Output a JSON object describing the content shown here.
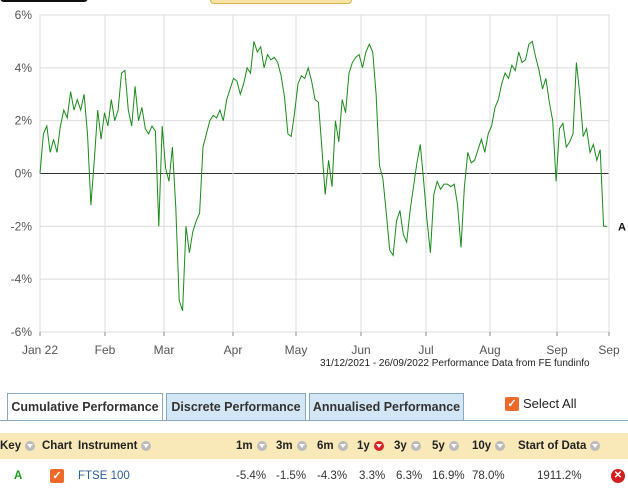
{
  "chart_data": {
    "type": "line",
    "x_labels": [
      "Jan 22",
      "Feb",
      "Mar",
      "Apr",
      "May",
      "Jun",
      "Jul",
      "Aug",
      "Sep",
      "Sep"
    ],
    "y_ticks": [
      "6%",
      "4%",
      "2%",
      "0%",
      "-2%",
      "-4%",
      "-6%"
    ],
    "ylim": [
      -6,
      6
    ],
    "series": [
      {
        "name": "A",
        "color": "#1b8a1b",
        "values": [
          0.0,
          1.5,
          1.8,
          0.8,
          1.3,
          0.8,
          1.8,
          2.4,
          2.1,
          3.1,
          2.4,
          2.8,
          2.4,
          3.0,
          1.5,
          -1.2,
          0.5,
          2.4,
          1.3,
          2.3,
          1.8,
          2.8,
          2.0,
          2.4,
          3.8,
          3.9,
          2.4,
          1.8,
          3.3,
          2.0,
          2.5,
          1.7,
          1.5,
          1.8,
          1.6,
          -2.0,
          1.8,
          0.2,
          -0.3,
          1.0,
          -1.3,
          -4.8,
          -5.2,
          -2.0,
          -3.0,
          -2.2,
          -1.8,
          -1.5,
          1.0,
          1.5,
          2.0,
          2.2,
          2.1,
          2.4,
          2.0,
          2.8,
          3.2,
          3.6,
          3.5,
          3.0,
          3.4,
          4.0,
          3.8,
          5.0,
          4.6,
          4.8,
          4.0,
          4.5,
          4.3,
          4.4,
          4.2,
          3.7,
          2.9,
          1.5,
          1.4,
          2.3,
          3.4,
          3.7,
          3.6,
          4.0,
          3.5,
          2.8,
          2.7,
          1.0,
          -0.8,
          0.5,
          -0.5,
          2.0,
          1.2,
          2.8,
          2.3,
          3.8,
          4.2,
          4.4,
          4.5,
          4.0,
          4.6,
          4.9,
          4.6,
          3.0,
          0.3,
          -0.2,
          -1.5,
          -2.9,
          -3.1,
          -1.8,
          -1.4,
          -2.3,
          -2.6,
          -1.4,
          -0.5,
          0.4,
          1.1,
          -0.3,
          -1.8,
          -3.0,
          -0.8,
          -0.3,
          -0.6,
          -0.4,
          -0.4,
          -0.5,
          -0.4,
          -1.2,
          -2.8,
          -0.5,
          0.8,
          0.4,
          0.5,
          0.9,
          1.3,
          0.8,
          1.5,
          1.8,
          2.5,
          2.8,
          3.4,
          3.8,
          3.6,
          4.1,
          3.9,
          4.6,
          4.2,
          4.3,
          4.9,
          5.0,
          4.4,
          3.9,
          3.2,
          3.6,
          2.7,
          2.0,
          -0.3,
          1.7,
          1.9,
          1.0,
          1.2,
          1.5,
          4.2,
          3.0,
          1.4,
          1.7,
          0.8,
          1.1,
          0.5,
          0.9,
          -2.0,
          -2.0
        ]
      }
    ],
    "series_label": "A",
    "zero_line": true,
    "grid": "vertical-and-horizontal"
  },
  "caption": "31/12/2021 - 26/09/2022 Performance Data from FE fundinfo",
  "tabs": [
    {
      "label": "Cumulative Performance",
      "active": true
    },
    {
      "label": "Discrete Performance",
      "active": false
    },
    {
      "label": "Annualised Performance",
      "active": false
    }
  ],
  "select_all": {
    "label": "Select All",
    "checked": true
  },
  "table": {
    "headers": {
      "key": "Key",
      "chart": "Chart",
      "instrument": "Instrument",
      "m1": "1m",
      "m3": "3m",
      "m6": "6m",
      "y1": "1y",
      "y3": "3y",
      "y5": "5y",
      "y10": "10y",
      "start": "Start of Data"
    },
    "rows": [
      {
        "key": "A",
        "chart_checked": true,
        "instrument": "FTSE 100",
        "m1": "-5.4%",
        "m3": "-1.5%",
        "m6": "-4.3%",
        "y1": "3.3%",
        "y3": "6.3%",
        "y5": "16.9%",
        "y10": "78.0%",
        "start": "1911.2%"
      }
    ]
  },
  "colors": {
    "line": "#1b8a1b",
    "grid": "#d9d9d9",
    "tab_inactive": "#d3e6f5",
    "header_bg": "#f9e9b8",
    "accent": "#ee6a2b"
  }
}
